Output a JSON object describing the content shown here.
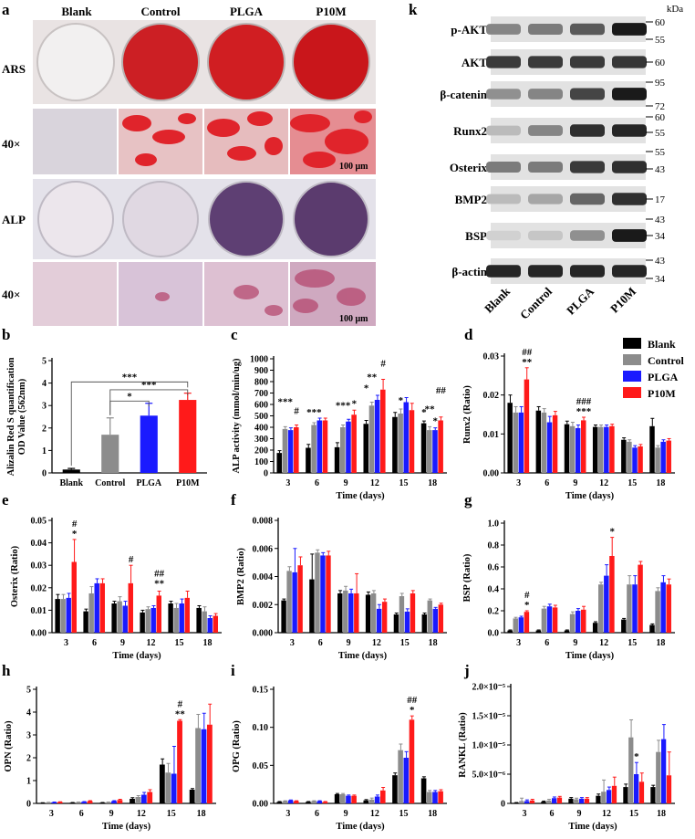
{
  "panels": {
    "a": {
      "letter": "a",
      "columns": [
        "Blank",
        "Control",
        "PLGA",
        "P10M"
      ],
      "rows": [
        "ARS",
        "40×",
        "ALP",
        "40×"
      ],
      "scalebar": "100 μm"
    },
    "k": {
      "letter": "k",
      "unit": "kDa",
      "proteins": [
        "p-AKT",
        "AKT",
        "β-catenin",
        "Runx2",
        "Osterix",
        "BMP2",
        "BSP",
        "β-actin"
      ],
      "markers": [
        "60",
        "55",
        "60",
        "95",
        "72",
        "60",
        "55",
        "55",
        "43",
        "17",
        "43",
        "34",
        "43",
        "34"
      ],
      "lanes": [
        "Blank",
        "Control",
        "PLGA",
        "P10M"
      ],
      "band_intensity": [
        [
          0.45,
          0.5,
          0.65,
          0.95
        ],
        [
          0.8,
          0.8,
          0.8,
          0.82
        ],
        [
          0.4,
          0.45,
          0.75,
          0.95
        ],
        [
          0.2,
          0.45,
          0.85,
          0.9
        ],
        [
          0.5,
          0.5,
          0.8,
          0.85
        ],
        [
          0.2,
          0.3,
          0.6,
          0.85
        ],
        [
          0.1,
          0.15,
          0.4,
          0.95
        ],
        [
          0.9,
          0.9,
          0.9,
          0.9
        ]
      ]
    }
  },
  "colors": {
    "Blank": "#000000",
    "Control": "#8c8c8c",
    "PLGA": "#1a1aff",
    "P10M": "#ff1a1a"
  },
  "legend": [
    "Blank",
    "Control",
    "PLGA",
    "P10M"
  ],
  "chart_data": [
    {
      "id": "b",
      "letter": "b",
      "type": "bar",
      "categories": [
        "Blank",
        "Control",
        "PLGA",
        "P10M"
      ],
      "values": [
        0.15,
        1.7,
        2.55,
        3.25
      ],
      "errors": [
        0.05,
        0.75,
        0.55,
        0.3
      ],
      "ylabel_lines": [
        "Alizalin Red S quantification",
        "OD  Value (562nm)"
      ],
      "xlabel": "",
      "ylim": [
        0,
        5
      ],
      "yticks": [
        "0",
        "1",
        "2",
        "3",
        "4",
        "5"
      ],
      "sig": [
        "***",
        "***",
        "*"
      ]
    },
    {
      "id": "c",
      "letter": "c",
      "type": "bar",
      "categories": [
        "3",
        "6",
        "9",
        "12",
        "15",
        "18"
      ],
      "series": [
        {
          "name": "Blank",
          "values": [
            175,
            220,
            225,
            430,
            490,
            435
          ],
          "errors": [
            20,
            30,
            40,
            30,
            40,
            20
          ]
        },
        {
          "name": "Control",
          "values": [
            385,
            420,
            400,
            590,
            520,
            375
          ],
          "errors": [
            20,
            20,
            20,
            30,
            40,
            30
          ]
        },
        {
          "name": "PLGA",
          "values": [
            375,
            460,
            450,
            640,
            620,
            375
          ],
          "errors": [
            20,
            20,
            20,
            40,
            40,
            20
          ]
        },
        {
          "name": "P10M",
          "values": [
            400,
            460,
            510,
            730,
            550,
            460
          ],
          "errors": [
            20,
            20,
            40,
            90,
            60,
            30
          ]
        }
      ],
      "ylabel": "ALP activity (mmol/min/ug)",
      "xlabel": "Time (days)",
      "ylim": [
        0,
        1000
      ],
      "yticks": [
        "0",
        "100",
        "200",
        "300",
        "400",
        "500",
        "600",
        "700",
        "800",
        "900",
        "1000"
      ],
      "sig": [
        "***",
        "#",
        "***",
        "***",
        "*",
        "**",
        "*",
        "#",
        "*",
        "**",
        "*",
        "##",
        "*"
      ]
    },
    {
      "id": "d",
      "letter": "d",
      "type": "bar",
      "categories": [
        "3",
        "6",
        "9",
        "12",
        "15",
        "18"
      ],
      "series": [
        {
          "name": "Blank",
          "values": [
            0.018,
            0.016,
            0.0125,
            0.0118,
            0.0085,
            0.012
          ],
          "errors": [
            0.002,
            0.001,
            0.0008,
            0.0005,
            0.0005,
            0.002
          ]
        },
        {
          "name": "Control",
          "values": [
            0.0155,
            0.0155,
            0.012,
            0.0118,
            0.008,
            0.0065
          ],
          "errors": [
            0.0015,
            0.001,
            0.001,
            0.0005,
            0.0005,
            0.0005
          ]
        },
        {
          "name": "PLGA",
          "values": [
            0.0155,
            0.013,
            0.0115,
            0.0118,
            0.0065,
            0.008
          ],
          "errors": [
            0.0015,
            0.0015,
            0.0008,
            0.0005,
            0.0005,
            0.0005
          ]
        },
        {
          "name": "P10M",
          "values": [
            0.024,
            0.0148,
            0.0135,
            0.012,
            0.0068,
            0.0083
          ],
          "errors": [
            0.003,
            0.001,
            0.0008,
            0.0005,
            0.0005,
            0.0005
          ]
        }
      ],
      "ylabel": "Runx2 (Ratio)",
      "xlabel": "Time (days)",
      "ylim": [
        0,
        0.03
      ],
      "yticks": [
        "0.00",
        "0.01",
        "0.02",
        "0.03"
      ],
      "sig": [
        "##",
        "**",
        "###",
        "***"
      ]
    },
    {
      "id": "e",
      "letter": "e",
      "type": "bar",
      "categories": [
        "3",
        "6",
        "9",
        "12",
        "15",
        "18"
      ],
      "series": [
        {
          "name": "Blank",
          "values": [
            0.015,
            0.0095,
            0.013,
            0.009,
            0.013,
            0.011
          ],
          "errors": [
            0.002,
            0.001,
            0.001,
            0.001,
            0.001,
            0.001
          ]
        },
        {
          "name": "Control",
          "values": [
            0.015,
            0.0175,
            0.014,
            0.0105,
            0.011,
            0.0095
          ],
          "errors": [
            0.002,
            0.003,
            0.002,
            0.001,
            0.002,
            0.002
          ]
        },
        {
          "name": "PLGA",
          "values": [
            0.0155,
            0.022,
            0.012,
            0.011,
            0.013,
            0.0065
          ],
          "errors": [
            0.002,
            0.002,
            0.002,
            0.001,
            0.002,
            0.001
          ]
        },
        {
          "name": "P10M",
          "values": [
            0.0315,
            0.022,
            0.022,
            0.0165,
            0.0155,
            0.0075
          ],
          "errors": [
            0.01,
            0.002,
            0.008,
            0.002,
            0.003,
            0.001
          ]
        }
      ],
      "ylabel": "Osterix (Ratio)",
      "xlabel": "Time (days)",
      "ylim": [
        0,
        0.05
      ],
      "yticks": [
        "0.00",
        "0.01",
        "0.02",
        "0.03",
        "0.04",
        "0.05"
      ],
      "sig": [
        "#",
        "*",
        "#",
        "##",
        "**"
      ]
    },
    {
      "id": "f",
      "letter": "f",
      "type": "bar",
      "categories": [
        "3",
        "6",
        "9",
        "12",
        "15",
        "18"
      ],
      "series": [
        {
          "name": "Blank",
          "values": [
            0.0023,
            0.0038,
            0.0028,
            0.0027,
            0.0013,
            0.0013
          ],
          "errors": [
            0.0001,
            0.0018,
            0.0002,
            0.0002,
            0.0001,
            0.0001
          ]
        },
        {
          "name": "Control",
          "values": [
            0.0044,
            0.0057,
            0.003,
            0.0028,
            0.0026,
            0.0023
          ],
          "errors": [
            0.0003,
            0.0002,
            0.0003,
            0.0002,
            0.0002,
            0.0001
          ]
        },
        {
          "name": "PLGA",
          "values": [
            0.0043,
            0.0055,
            0.0028,
            0.0017,
            0.0015,
            0.0017
          ],
          "errors": [
            0.0017,
            0.0002,
            0.0003,
            0.0003,
            0.0002,
            0.0001
          ]
        },
        {
          "name": "P10M",
          "values": [
            0.0048,
            0.0055,
            0.0028,
            0.0022,
            0.0028,
            0.002
          ],
          "errors": [
            0.0006,
            0.0003,
            0.0014,
            0.0002,
            0.0002,
            0.0001
          ]
        }
      ],
      "ylabel": "BMP2 (Ratio)",
      "xlabel": "Time (days)",
      "ylim": [
        0,
        0.008
      ],
      "yticks": [
        "0.000",
        "0.002",
        "0.004",
        "0.006",
        "0.008"
      ],
      "sig": []
    },
    {
      "id": "g",
      "letter": "g",
      "type": "bar",
      "categories": [
        "3",
        "6",
        "9",
        "12",
        "15",
        "18"
      ],
      "series": [
        {
          "name": "Blank",
          "values": [
            0.02,
            0.02,
            0.02,
            0.09,
            0.12,
            0.07
          ],
          "errors": [
            0.005,
            0.005,
            0.005,
            0.01,
            0.01,
            0.01
          ]
        },
        {
          "name": "Control",
          "values": [
            0.13,
            0.22,
            0.17,
            0.44,
            0.44,
            0.38
          ],
          "errors": [
            0.01,
            0.02,
            0.02,
            0.02,
            0.08,
            0.03
          ]
        },
        {
          "name": "PLGA",
          "values": [
            0.14,
            0.24,
            0.2,
            0.52,
            0.44,
            0.46
          ],
          "errors": [
            0.01,
            0.02,
            0.02,
            0.1,
            0.08,
            0.06
          ]
        },
        {
          "name": "P10M",
          "values": [
            0.19,
            0.23,
            0.21,
            0.7,
            0.62,
            0.44
          ],
          "errors": [
            0.01,
            0.02,
            0.03,
            0.17,
            0.03,
            0.05
          ]
        }
      ],
      "ylabel": "BSP (Ratio)",
      "xlabel": "Time (days)",
      "ylim": [
        0,
        1.0
      ],
      "yticks": [
        "0.0",
        "0.2",
        "0.4",
        "0.6",
        "0.8",
        "1.0"
      ],
      "sig": [
        "#",
        "*",
        "*"
      ]
    },
    {
      "id": "h",
      "letter": "h",
      "type": "bar",
      "categories": [
        "3",
        "6",
        "9",
        "12",
        "15",
        "18"
      ],
      "series": [
        {
          "name": "Blank",
          "values": [
            0.02,
            0.03,
            0.03,
            0.2,
            1.7,
            0.6
          ],
          "errors": [
            0.01,
            0.01,
            0.01,
            0.05,
            0.25,
            0.05
          ]
        },
        {
          "name": "Control",
          "values": [
            0.04,
            0.05,
            0.05,
            0.28,
            1.35,
            3.3
          ],
          "errors": [
            0.01,
            0.01,
            0.01,
            0.06,
            0.4,
            0.6
          ]
        },
        {
          "name": "PLGA",
          "values": [
            0.05,
            0.07,
            0.1,
            0.38,
            1.3,
            3.25
          ],
          "errors": [
            0.01,
            0.01,
            0.02,
            0.1,
            1.2,
            0.7
          ]
        },
        {
          "name": "P10M",
          "values": [
            0.06,
            0.1,
            0.15,
            0.5,
            3.62,
            3.45
          ],
          "errors": [
            0.01,
            0.02,
            0.03,
            0.1,
            0.05,
            0.9
          ]
        }
      ],
      "ylabel": "OPN (Ratio)",
      "xlabel": "Time (days)",
      "ylim": [
        0,
        5
      ],
      "yticks": [
        "0",
        "1",
        "2",
        "3",
        "4",
        "5"
      ],
      "sig": [
        "#",
        "**"
      ]
    },
    {
      "id": "i",
      "letter": "i",
      "type": "bar",
      "categories": [
        "3",
        "6",
        "9",
        "12",
        "15",
        "18"
      ],
      "series": [
        {
          "name": "Blank",
          "values": [
            0.002,
            0.002,
            0.012,
            0.004,
            0.037,
            0.033
          ],
          "errors": [
            0.0005,
            0.0005,
            0.001,
            0.001,
            0.003,
            0.002
          ]
        },
        {
          "name": "Control",
          "values": [
            0.003,
            0.003,
            0.012,
            0.005,
            0.07,
            0.015
          ],
          "errors": [
            0.0005,
            0.0005,
            0.001,
            0.002,
            0.008,
            0.002
          ]
        },
        {
          "name": "PLGA",
          "values": [
            0.004,
            0.003,
            0.01,
            0.009,
            0.06,
            0.015
          ],
          "errors": [
            0.0005,
            0.0005,
            0.001,
            0.002,
            0.008,
            0.002
          ]
        },
        {
          "name": "P10M",
          "values": [
            0.003,
            0.002,
            0.01,
            0.017,
            0.11,
            0.016
          ],
          "errors": [
            0.0005,
            0.0005,
            0.001,
            0.004,
            0.005,
            0.002
          ]
        }
      ],
      "ylabel": "OPG (Ratio)",
      "xlabel": "Time (days)",
      "ylim": [
        0,
        0.15
      ],
      "yticks": [
        "0.00",
        "0.05",
        "0.10",
        "0.15"
      ],
      "sig": [
        "##",
        "*"
      ]
    },
    {
      "id": "j",
      "letter": "j",
      "type": "bar",
      "categories": [
        "3",
        "6",
        "9",
        "12",
        "15",
        "18"
      ],
      "series": [
        {
          "name": "Blank",
          "values": [
            1e-07,
            3e-07,
            8e-07,
            1.3e-06,
            2.8e-06,
            2.8e-06
          ],
          "errors": [
            5e-08,
            1e-07,
            2e-07,
            3e-07,
            5e-07,
            3e-07
          ]
        },
        {
          "name": "Control",
          "values": [
            4e-07,
            5e-07,
            7e-07,
            2e-06,
            1.13e-05,
            8.8e-06
          ],
          "errors": [
            5e-07,
            2e-07,
            2e-07,
            2e-06,
            3e-06,
            2e-06
          ]
        },
        {
          "name": "PLGA",
          "values": [
            4e-07,
            9e-07,
            8e-07,
            2.3e-06,
            5e-06,
            1.1e-05
          ],
          "errors": [
            2e-07,
            2e-07,
            2e-07,
            5e-07,
            2e-06,
            2.5e-06
          ]
        },
        {
          "name": "P10M",
          "values": [
            5e-07,
            1e-06,
            8e-07,
            3e-06,
            3.7e-06,
            4.8e-06
          ],
          "errors": [
            2e-07,
            2e-07,
            2e-07,
            1.5e-06,
            1.5e-06,
            4e-06
          ]
        }
      ],
      "ylabel": "RANKL (Ratio)",
      "xlabel": "Time (days)",
      "ylim": [
        0,
        2e-05
      ],
      "yticks": [
        "0",
        "5.0×10⁻⁶",
        "1.0×10⁻⁵",
        "1.5×10⁻⁵",
        "2.0×10⁻⁵"
      ],
      "sig": [
        "*"
      ]
    }
  ]
}
